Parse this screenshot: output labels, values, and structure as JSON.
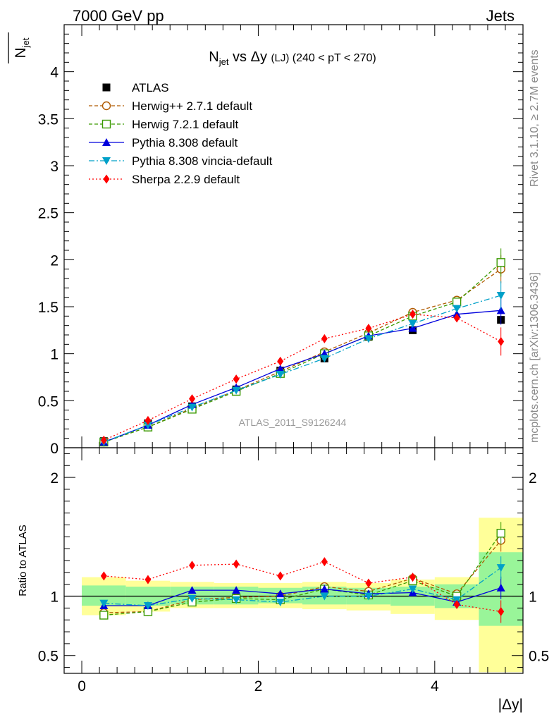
{
  "header": {
    "left": "7000 GeV pp",
    "right": "Jets",
    "side_top": "Rivet 3.1.10, ≥ 2.7M events",
    "side_bottom": "mcplots.cern.ch [arXiv:1306.3436]"
  },
  "main_plot": {
    "title_n": "N",
    "title_sub": "jet",
    "title_mid": " vs Δy ",
    "title_lj": "(LJ)",
    "title_range": " (240 < pT < 270)",
    "ylabel_n": "N",
    "ylabel_sub": "jet",
    "watermark": "ATLAS_2011_S9126244"
  },
  "ratio_plot": {
    "ylabel": "Ratio to ATLAS",
    "xlabel": "|Δy|"
  },
  "chart_data": [
    {
      "type": "line",
      "panel": "main",
      "xlim": [
        -0.2,
        5.0
      ],
      "ylim": [
        0,
        4.5
      ],
      "y_ticks": [
        0,
        0.5,
        1,
        1.5,
        2,
        2.5,
        3,
        3.5,
        4
      ],
      "y_tick_labels": [
        "0",
        "0.5",
        "1",
        "1.5",
        "2",
        "2.5",
        "3",
        "3.5",
        "4"
      ],
      "legend_position": "top-left",
      "x": [
        0.25,
        0.75,
        1.25,
        1.75,
        2.25,
        2.75,
        3.25,
        3.75,
        4.25,
        4.75
      ],
      "series": [
        {
          "name": "ATLAS",
          "color": "#000000",
          "marker": "square-filled",
          "line": "none",
          "values": [
            0.07,
            0.26,
            0.44,
            0.62,
            0.82,
            0.95,
            1.18,
            1.25,
            1.55,
            1.36
          ]
        },
        {
          "name": "Herwig++ 2.7.1 default",
          "color": "#b05a00",
          "marker": "circle-open",
          "line": "dashed",
          "values": [
            0.06,
            0.22,
            0.42,
            0.61,
            0.81,
            1.02,
            1.22,
            1.44,
            1.57,
            1.9
          ]
        },
        {
          "name": "Herwig 7.2.1 default",
          "color": "#3a9a00",
          "marker": "square-open",
          "line": "dashed",
          "values": [
            0.06,
            0.22,
            0.41,
            0.6,
            0.79,
            1.0,
            1.19,
            1.4,
            1.55,
            1.97
          ]
        },
        {
          "name": "Pythia 8.308 default",
          "color": "#0000dd",
          "marker": "triangle-up",
          "line": "solid",
          "values": [
            0.06,
            0.24,
            0.46,
            0.64,
            0.84,
            1.0,
            1.19,
            1.27,
            1.42,
            1.46
          ]
        },
        {
          "name": "Pythia 8.308 vincia-default",
          "color": "#00a0c8",
          "marker": "triangle-down",
          "line": "dashdot",
          "values": [
            0.06,
            0.24,
            0.43,
            0.61,
            0.78,
            0.95,
            1.16,
            1.32,
            1.48,
            1.62
          ]
        },
        {
          "name": "Sherpa 2.2.9 default",
          "color": "#ff0000",
          "marker": "diamond",
          "line": "dotted",
          "values": [
            0.08,
            0.29,
            0.52,
            0.73,
            0.92,
            1.16,
            1.27,
            1.42,
            1.38,
            1.13
          ]
        }
      ]
    },
    {
      "type": "line",
      "panel": "ratio",
      "xlim": [
        -0.2,
        5.0
      ],
      "ylim": [
        0.35,
        2.25
      ],
      "x_ticks": [
        0,
        2,
        4
      ],
      "x_tick_labels": [
        "0",
        "2",
        "4"
      ],
      "y_ticks": [
        0.5,
        1,
        2
      ],
      "y_tick_labels": [
        "0.5",
        "1",
        "2"
      ],
      "x": [
        0.25,
        0.75,
        1.25,
        1.75,
        2.25,
        2.75,
        3.25,
        3.75,
        4.25,
        4.75
      ],
      "band_edges": [
        0,
        0.5,
        1.0,
        1.5,
        2.0,
        2.5,
        3.0,
        3.5,
        4.0,
        4.5,
        5.0
      ],
      "band_yellow": [
        [
          0.84,
          1.16
        ],
        [
          0.87,
          1.13
        ],
        [
          0.9,
          1.12
        ],
        [
          0.9,
          1.11
        ],
        [
          0.9,
          1.11
        ],
        [
          0.89,
          1.12
        ],
        [
          0.88,
          1.11
        ],
        [
          0.85,
          1.14
        ],
        [
          0.8,
          1.16
        ],
        [
          0.36,
          1.66
        ]
      ],
      "band_green": [
        [
          0.92,
          1.09
        ],
        [
          0.92,
          1.08
        ],
        [
          0.93,
          1.08
        ],
        [
          0.93,
          1.08
        ],
        [
          0.94,
          1.07
        ],
        [
          0.93,
          1.08
        ],
        [
          0.93,
          1.07
        ],
        [
          0.92,
          1.08
        ],
        [
          0.9,
          1.1
        ],
        [
          0.75,
          1.37
        ]
      ],
      "series": [
        {
          "name": "Herwig++ 2.7.1 default",
          "values": [
            0.86,
            0.87,
            0.97,
            0.99,
            1.0,
            1.08,
            1.04,
            1.15,
            1.02,
            1.47
          ]
        },
        {
          "name": "Herwig 7.2.1 default",
          "values": [
            0.84,
            0.87,
            0.95,
            0.98,
            0.97,
            1.06,
            1.01,
            1.13,
            1.0,
            1.53
          ]
        },
        {
          "name": "Pythia 8.308 default",
          "values": [
            0.92,
            0.92,
            1.05,
            1.05,
            1.02,
            1.06,
            1.02,
            1.03,
            0.95,
            1.07
          ]
        },
        {
          "name": "Pythia 8.308 vincia-default",
          "values": [
            0.94,
            0.92,
            0.98,
            0.97,
            0.95,
            1.0,
            1.0,
            1.06,
            0.97,
            1.24
          ]
        },
        {
          "name": "Sherpa 2.2.9 default",
          "values": [
            1.17,
            1.14,
            1.26,
            1.27,
            1.17,
            1.29,
            1.11,
            1.16,
            0.93,
            0.87
          ]
        }
      ]
    }
  ]
}
